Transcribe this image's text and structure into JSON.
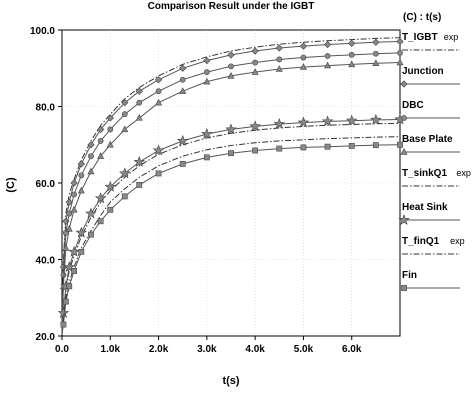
{
  "chart_data": {
    "type": "line",
    "title": "Comparison Result under the IGBT",
    "xlabel": "t(s)",
    "ylabel": "(C)",
    "legend_title": "(C) : t(s)",
    "legend_position": "right",
    "xlim": [
      0,
      7000
    ],
    "ylim": [
      20,
      100
    ],
    "x_ticks": [
      {
        "v": 0,
        "label": "0.0"
      },
      {
        "v": 1000,
        "label": "1.0k"
      },
      {
        "v": 2000,
        "label": "2.0k"
      },
      {
        "v": 3000,
        "label": "3.0k"
      },
      {
        "v": 4000,
        "label": "4.0k"
      },
      {
        "v": 5000,
        "label": "5.0k"
      },
      {
        "v": 6000,
        "label": "6.0k"
      }
    ],
    "y_ticks": [
      {
        "v": 20,
        "label": "20.0"
      },
      {
        "v": 40,
        "label": "40.0"
      },
      {
        "v": 60,
        "label": "60.0"
      },
      {
        "v": 80,
        "label": "80.0"
      },
      {
        "v": 100,
        "label": "100.0"
      }
    ],
    "x": [
      0,
      30,
      80,
      150,
      250,
      400,
      600,
      800,
      1000,
      1300,
      1600,
      2000,
      2500,
      3000,
      3500,
      4000,
      4500,
      5000,
      5500,
      6000,
      6500,
      7000
    ],
    "series": [
      {
        "name": "T_IGBT",
        "suffix": "exp",
        "style": "dashdot",
        "marker": "none",
        "values": [
          22,
          40,
          52,
          57,
          61,
          66,
          71,
          75,
          78,
          82,
          85,
          88,
          91,
          93,
          94.5,
          95.5,
          96.3,
          96.8,
          97.2,
          97.5,
          97.8,
          98
        ]
      },
      {
        "name": "Junction",
        "style": "solid",
        "marker": "diamond",
        "values": [
          21,
          38,
          50,
          55,
          60,
          65,
          70,
          74,
          77,
          81,
          84,
          87,
          90,
          92,
          93.5,
          94.5,
          95.3,
          95.8,
          96.2,
          96.5,
          96.8,
          97
        ]
      },
      {
        "name": "DBC",
        "style": "solid",
        "marker": "circle",
        "values": [
          21,
          36,
          47,
          52,
          57,
          62,
          67,
          71,
          74,
          78,
          81,
          84,
          87,
          89,
          90.5,
          91.5,
          92.3,
          92.8,
          93.2,
          93.5,
          93.8,
          94
        ]
      },
      {
        "name": "Base Plate",
        "style": "solid",
        "marker": "triangle",
        "values": [
          21,
          33,
          43,
          48,
          53,
          58,
          63,
          67,
          70,
          74,
          77,
          81,
          84,
          86.5,
          88,
          89,
          89.8,
          90.3,
          90.7,
          91,
          91.3,
          91.5
        ]
      },
      {
        "name": "T_sinkQ1",
        "suffix": "exp",
        "style": "dashdot",
        "marker": "none",
        "values": [
          20.5,
          25,
          32,
          37,
          41,
          46,
          51,
          55,
          58,
          61.5,
          64.5,
          67.5,
          70,
          71.8,
          73,
          73.8,
          74.4,
          74.8,
          75.1,
          75.3,
          75.5,
          75.6
        ]
      },
      {
        "name": "Heat Sink",
        "style": "solid",
        "marker": "star",
        "values": [
          20.5,
          26,
          33,
          38,
          42,
          47,
          52,
          56,
          59,
          62.5,
          65.5,
          68.5,
          71,
          72.8,
          74,
          74.8,
          75.4,
          75.8,
          76.1,
          76.3,
          76.5,
          76.6
        ]
      },
      {
        "name": "T_finQ1",
        "suffix": "exp",
        "style": "dashdot",
        "marker": "none",
        "values": [
          20.5,
          24,
          30,
          34,
          38,
          43,
          47.5,
          51.5,
          55,
          58.5,
          61.5,
          64.5,
          67,
          68.7,
          69.8,
          70.5,
          71,
          71.3,
          71.6,
          71.8,
          72,
          72.1
        ]
      },
      {
        "name": "Fin",
        "style": "solid",
        "marker": "square",
        "values": [
          20.5,
          23,
          29,
          33,
          37,
          42,
          46.5,
          50,
          53,
          56.5,
          59.5,
          62.5,
          65,
          66.7,
          67.8,
          68.5,
          69,
          69.3,
          69.5,
          69.7,
          69.9,
          70
        ]
      }
    ]
  }
}
